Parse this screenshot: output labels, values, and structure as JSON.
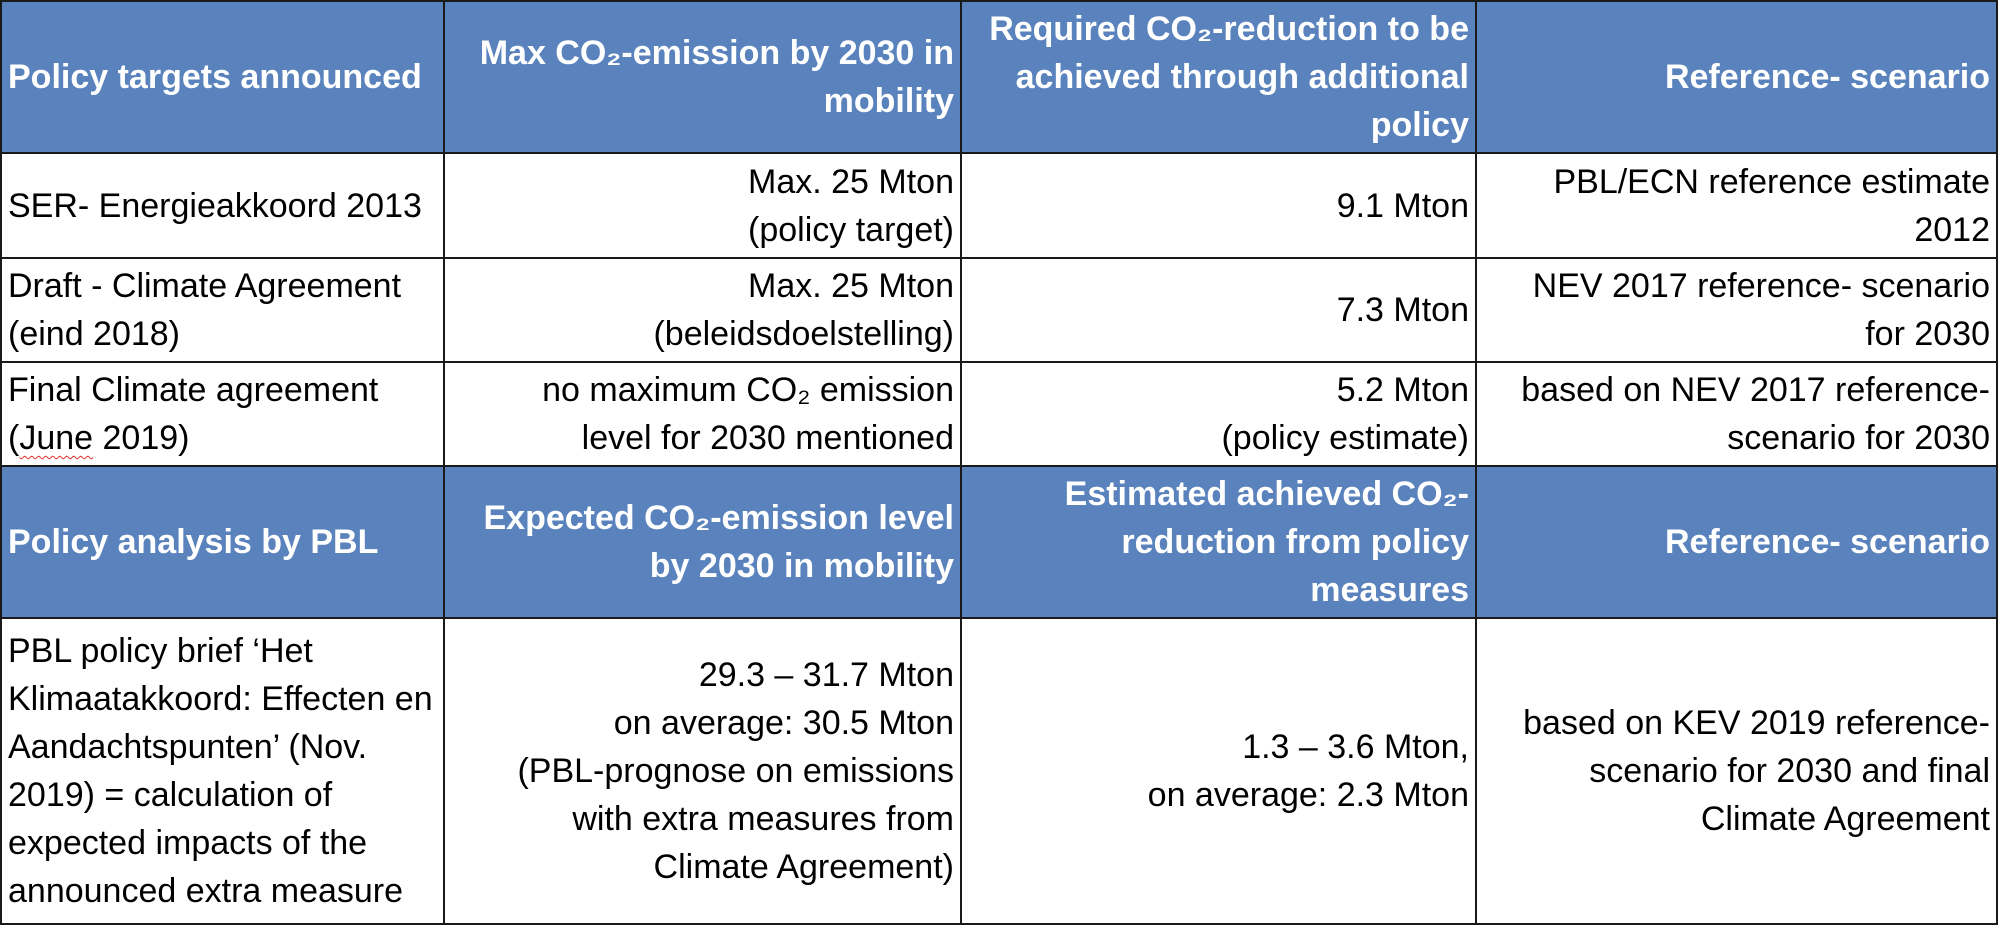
{
  "header1": {
    "col1": "Policy targets announced",
    "col2": "Max CO₂-emission by 2030 in mobility",
    "col3": "Required CO₂-reduction to be achieved through additional policy",
    "col4": "Reference- scenario"
  },
  "rows1": [
    {
      "col1": "SER- Energieakkoord 2013",
      "col2": [
        "Max. 25 Mton",
        "(policy target)"
      ],
      "col3": [
        "9.1 Mton"
      ],
      "col4": [
        "PBL/ECN reference estimate",
        "2012"
      ]
    },
    {
      "col1": "Draft - Climate Agreement (eind 2018)",
      "col2": [
        "Max. 25 Mton",
        "(beleidsdoelstelling)"
      ],
      "col3": [
        "7.3 Mton"
      ],
      "col4": [
        "NEV 2017 reference- scenario",
        "for 2030"
      ]
    },
    {
      "col1_a": "Final Climate agreement",
      "col1_b_pre": "(",
      "col1_b_mark": "June",
      "col1_b_post": " 2019)",
      "col2": [
        "no maximum CO₂ emission",
        "level for 2030 mentioned"
      ],
      "col3": [
        "5.2 Mton",
        "(policy estimate)"
      ],
      "col4": [
        "based on NEV 2017 reference-",
        "scenario for 2030"
      ]
    }
  ],
  "header2": {
    "col1": "Policy analysis by PBL",
    "col2": "Expected CO₂-emission level by 2030 in mobility",
    "col3": "Estimated achieved CO₂-reduction from policy measures",
    "col4": "Reference- scenario"
  },
  "rows2": [
    {
      "col1": "PBL policy brief ‘Het Klimaatakkoord: Effecten en Aandachtspunten’ (Nov. 2019) = calculation of expected impacts of the announced extra measure",
      "col2": [
        "29.3 – 31.7 Mton",
        "on average: 30.5 Mton",
        "(PBL-prognose on emissions",
        "with extra measures from",
        "Climate Agreement)"
      ],
      "col3": [
        "1.3 – 3.6 Mton,",
        "on average: 2.3 Mton"
      ],
      "col4": [
        "based on KEV 2019 reference-",
        "scenario for 2030 and final",
        "Climate Agreement"
      ]
    }
  ]
}
